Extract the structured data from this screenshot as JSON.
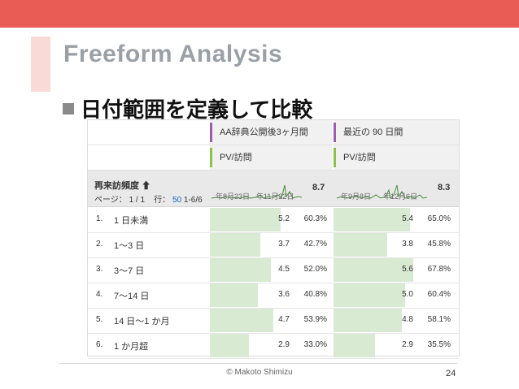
{
  "slide": {
    "title": "Freeform Analysis",
    "bullet": "日付範囲を定義して比較",
    "copyright": "© Makoto Shimizu",
    "page_number": "24",
    "colors": {
      "topbar": "#e85c55",
      "accent": "#f9dad7",
      "bar_fill": "#d9ead3",
      "segment_stripe": "#9c5bb3",
      "metric_stripe": "#8bc34a"
    }
  },
  "report": {
    "segments": [
      "AA辞典公開後3ヶ月間",
      "最近の 90 日間"
    ],
    "metric_label": "PV/訪問",
    "dimension": "再来訪頻度",
    "sort_icon": "arrow-up-icon",
    "paging": {
      "page_label": "ページ：",
      "page_value": "1 / 1",
      "rows_label": "行：",
      "rows_value": "50",
      "range": "1-6/6"
    },
    "sparkline_dates": [
      [
        "年8月23日",
        "年11月22日"
      ],
      [
        "年9月8日",
        "年12月6日"
      ]
    ],
    "totals": [
      "8.7",
      "8.3"
    ],
    "rows": [
      {
        "index": "1.",
        "label": "1 日未満",
        "seg1_value": "5.2",
        "seg1_pct": "60.3%",
        "seg1_frac": 0.603,
        "seg2_value": "5.4",
        "seg2_pct": "65.0%",
        "seg2_frac": 0.65
      },
      {
        "index": "2.",
        "label": "1〜3 日",
        "seg1_value": "3.7",
        "seg1_pct": "42.7%",
        "seg1_frac": 0.427,
        "seg2_value": "3.8",
        "seg2_pct": "45.8%",
        "seg2_frac": 0.458
      },
      {
        "index": "3.",
        "label": "3〜7 日",
        "seg1_value": "4.5",
        "seg1_pct": "52.0%",
        "seg1_frac": 0.52,
        "seg2_value": "5.6",
        "seg2_pct": "67.8%",
        "seg2_frac": 0.678
      },
      {
        "index": "4.",
        "label": "7〜14 日",
        "seg1_value": "3.6",
        "seg1_pct": "40.8%",
        "seg1_frac": 0.408,
        "seg2_value": "5.0",
        "seg2_pct": "60.4%",
        "seg2_frac": 0.604
      },
      {
        "index": "5.",
        "label": "14 日〜1 か月",
        "seg1_value": "4.7",
        "seg1_pct": "53.9%",
        "seg1_frac": 0.539,
        "seg2_value": "4.8",
        "seg2_pct": "58.1%",
        "seg2_frac": 0.581
      },
      {
        "index": "6.",
        "label": "1 か月超",
        "seg1_value": "2.9",
        "seg1_pct": "33.0%",
        "seg1_frac": 0.33,
        "seg2_value": "2.9",
        "seg2_pct": "35.5%",
        "seg2_frac": 0.355
      }
    ]
  }
}
